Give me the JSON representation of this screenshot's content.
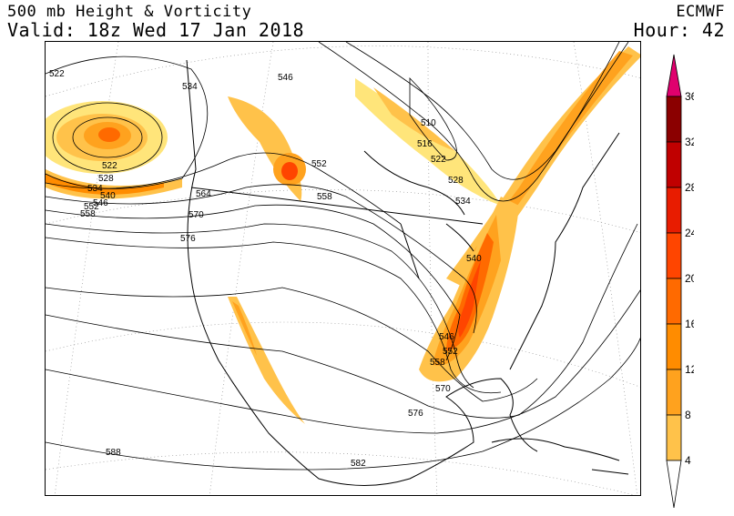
{
  "header": {
    "title": "500 mb Height & Vorticity",
    "valid": "Valid: 18z Wed 17 Jan 2018",
    "model": "ECMWF",
    "hour": "Hour: 42"
  },
  "contour_labels": [
    {
      "id": "522a",
      "text": "522"
    },
    {
      "id": "534",
      "text": "534"
    },
    {
      "id": "546a",
      "text": "546"
    },
    {
      "id": "510",
      "text": "510"
    },
    {
      "id": "516",
      "text": "516"
    },
    {
      "id": "522b",
      "text": "522"
    },
    {
      "id": "528a",
      "text": "528"
    },
    {
      "id": "534b",
      "text": "534"
    },
    {
      "id": "552a",
      "text": "552"
    },
    {
      "id": "558a",
      "text": "558"
    },
    {
      "id": "564",
      "text": "564"
    },
    {
      "id": "570a",
      "text": "570"
    },
    {
      "id": "576a",
      "text": "576"
    },
    {
      "id": "522c",
      "text": "522"
    },
    {
      "id": "528b",
      "text": "528"
    },
    {
      "id": "534c",
      "text": "534"
    },
    {
      "id": "540a",
      "text": "540"
    },
    {
      "id": "546b",
      "text": "546"
    },
    {
      "id": "552b",
      "text": "552"
    },
    {
      "id": "558b",
      "text": "558"
    },
    {
      "id": "540b",
      "text": "540"
    },
    {
      "id": "546c",
      "text": "546"
    },
    {
      "id": "552c",
      "text": "552"
    },
    {
      "id": "558c",
      "text": "558"
    },
    {
      "id": "570b",
      "text": "570"
    },
    {
      "id": "576b",
      "text": "576"
    },
    {
      "id": "582",
      "text": "582"
    },
    {
      "id": "588",
      "text": "588"
    }
  ],
  "legend": {
    "levels": [
      "36",
      "32",
      "28",
      "24",
      "20",
      "16",
      "12",
      "8",
      "4"
    ],
    "colors": {
      "top_arrow": "#e0006e",
      "36": "#8b0000",
      "32": "#c00000",
      "28": "#e81c00",
      "24": "#ff4500",
      "20": "#ff6a00",
      "16": "#ff8c00",
      "12": "#ffa21e",
      "8": "#ffc24a",
      "4": "#ffe57a",
      "below": "#ffffff"
    }
  }
}
